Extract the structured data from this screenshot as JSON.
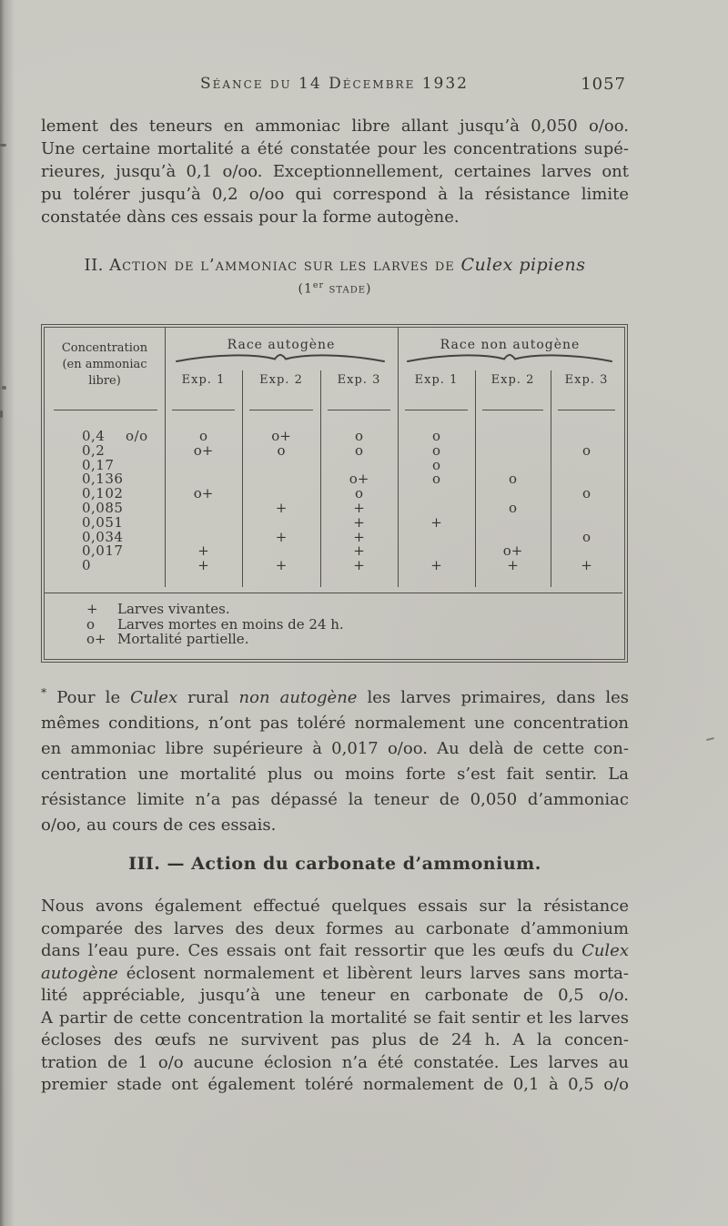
{
  "header": {
    "title": "Séance du 14 Décembre 1932",
    "page_number": "1057"
  },
  "paragraph1": {
    "justify_last": false,
    "lines": [
      "lement des teneurs en ammoniac libre allant jusqu’à 0,050 o/oo.",
      "Une certaine mortalité a été constatée pour les concentrations supé-",
      "rieures, jusqu’à 0,1 o/oo. Exceptionnellement, certaines larves ont",
      "pu tolérer jusqu’à 0,2 o/oo qui correspond à la résistance limite",
      "constatée dàns ces essais pour la forme autogène."
    ]
  },
  "section2": {
    "number": "II. ",
    "title": "Action de l’ammoniac sur les larves de ",
    "species": "Culex pipiens",
    "stage_pre": "(1",
    "stage_sup": "er",
    "stage_post": " stade)"
  },
  "table": {
    "col1_header_lines": [
      "Concentration",
      "(en ammoniac",
      "libre)"
    ],
    "group_headers": [
      "Race autogène",
      "Race non autogène"
    ],
    "exp_headers": [
      "Exp. 1",
      "Exp. 2",
      "Exp. 3",
      "Exp. 1",
      "Exp. 2",
      "Exp. 3"
    ],
    "rows": [
      {
        "label": "0,4",
        "unit": "o/o",
        "cells": [
          "o",
          "o+",
          "o",
          "o",
          "",
          ""
        ]
      },
      {
        "label": "0,2",
        "unit": "",
        "cells": [
          "o+",
          "o",
          "o",
          "o",
          "",
          "o"
        ]
      },
      {
        "label": "0,17",
        "unit": "",
        "cells": [
          "",
          "",
          "",
          "o",
          "",
          ""
        ]
      },
      {
        "label": "0,136",
        "unit": "",
        "cells": [
          "",
          "",
          "o+",
          "o",
          "o",
          ""
        ]
      },
      {
        "label": "0,102",
        "unit": "",
        "cells": [
          "o+",
          "",
          "o",
          "",
          "",
          "o"
        ]
      },
      {
        "label": "0,085",
        "unit": "",
        "cells": [
          "",
          "+",
          "+",
          "",
          "o",
          ""
        ]
      },
      {
        "label": "0,051",
        "unit": "",
        "cells": [
          "",
          "",
          "+",
          "+",
          "",
          ""
        ]
      },
      {
        "label": "0,034",
        "unit": "",
        "cells": [
          "",
          "+",
          "+",
          "",
          "",
          "o"
        ]
      },
      {
        "label": "0,017",
        "unit": "",
        "cells": [
          "+",
          "",
          "+",
          "",
          "o+",
          ""
        ]
      },
      {
        "label": "0",
        "unit": "",
        "cells": [
          "+",
          "+",
          "+",
          "+",
          "+",
          "+"
        ]
      }
    ],
    "legend": [
      {
        "symbol": "+",
        "text": "Larves vivantes."
      },
      {
        "symbol": "o",
        "text": "Larves mortes en moins de 24 h."
      },
      {
        "symbol": "o+",
        "text": "Mortalité partielle."
      }
    ]
  },
  "paragraph2": {
    "justify_last": false,
    "lines": [
      [
        {
          "t": "*",
          "sup": 1
        },
        {
          "t": " Pour le "
        },
        {
          "t": "Culex",
          "i": 1
        },
        {
          "t": " rural "
        },
        {
          "t": "non autogène",
          "i": 1
        },
        {
          "t": " les larves primaires, dans les"
        }
      ],
      "mêmes conditions, n’ont pas toléré normalement une concentration",
      "en ammoniac libre supérieure à 0,017 o/oo. Au delà de cette con-",
      "centration une mortalité plus ou moins forte s’est fait sentir. La",
      "résistance limite n’a pas dépassé la teneur de 0,050 d’ammoniac",
      "o/oo, au cours de ces essais."
    ]
  },
  "section3": {
    "title": "III. — Action du carbonate d’ammonium."
  },
  "paragraph3": {
    "justify_last": true,
    "lines": [
      "Nous avons également effectué quelques essais sur la résistance",
      "comparée des larves des deux formes au carbonate d’ammonium",
      [
        {
          "t": "dans l’eau pure. Ces essais ont fait ressortir que les œufs du "
        },
        {
          "t": "Culex",
          "i": 1
        }
      ],
      [
        {
          "t": "autogène",
          "i": 1
        },
        {
          "t": " éclosent normalement et libèrent leurs larves sans morta-"
        }
      ],
      "lité appréciable, jusqu’à une teneur en carbonate de 0,5 o/o.",
      "A partir de cette concentration la mortalité se fait sentir et les larves",
      "écloses des œufs ne survivent pas plus de 24 h. A la concen-",
      "tration de 1 o/o aucune éclosion n’a été constatée. Les larves au",
      "premier stade ont également toléré normalement de 0,1 à 0,5 o/o"
    ]
  }
}
